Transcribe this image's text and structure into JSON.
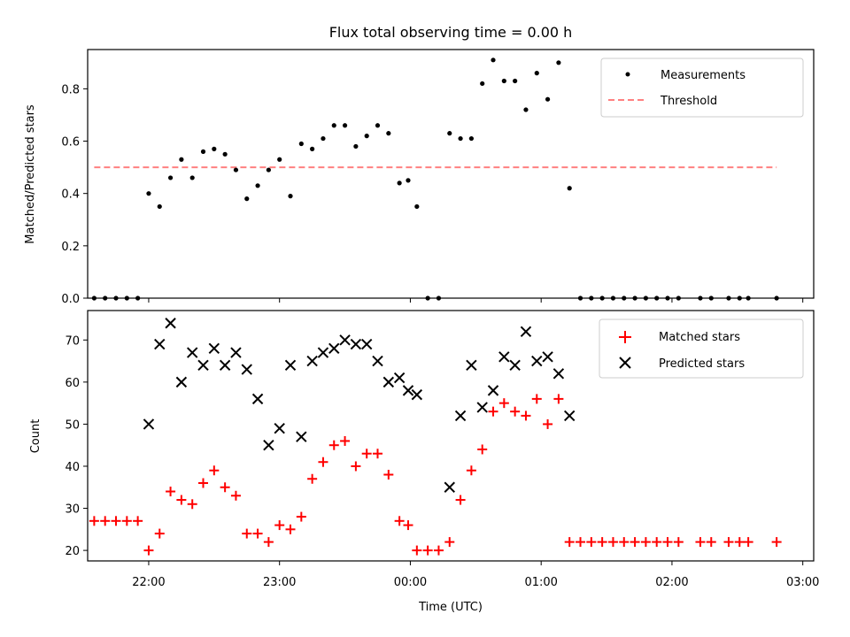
{
  "chart_data": [
    {
      "type": "scatter",
      "title": "Flux total observing time = 0.00 h",
      "xlabel": "",
      "ylabel": "Matched/Predicted stars",
      "xlim": [
        "21:32",
        "03:05"
      ],
      "ylim": [
        0.0,
        0.95
      ],
      "yticks": [
        "0.0",
        "0.2",
        "0.4",
        "0.6",
        "0.8"
      ],
      "yticks_values": [
        0.0,
        0.2,
        0.4,
        0.6,
        0.8
      ],
      "grid": false,
      "legend_position": "top-right",
      "series": [
        {
          "name": "Measurements",
          "marker": "dot",
          "color": "#000000",
          "x": [
            "21:35",
            "21:40",
            "21:45",
            "21:50",
            "21:55",
            "22:00",
            "22:05",
            "22:10",
            "22:15",
            "22:20",
            "22:25",
            "22:30",
            "22:35",
            "22:40",
            "22:45",
            "22:50",
            "22:55",
            "23:00",
            "23:05",
            "23:10",
            "23:15",
            "23:20",
            "23:25",
            "23:30",
            "23:35",
            "23:40",
            "23:45",
            "23:50",
            "23:55",
            "23:59",
            "00:03",
            "00:08",
            "00:13",
            "00:18",
            "00:23",
            "00:28",
            "00:33",
            "00:38",
            "00:43",
            "00:48",
            "00:53",
            "00:58",
            "01:03",
            "01:08",
            "01:13",
            "01:18",
            "01:23",
            "01:28",
            "01:33",
            "01:38",
            "01:43",
            "01:48",
            "01:53",
            "01:58",
            "02:03",
            "02:13",
            "02:18",
            "02:26",
            "02:31",
            "02:35",
            "02:48"
          ],
          "y": [
            0.0,
            0.0,
            0.0,
            0.0,
            0.0,
            0.4,
            0.35,
            0.46,
            0.53,
            0.46,
            0.56,
            0.57,
            0.55,
            0.49,
            0.38,
            0.43,
            0.49,
            0.53,
            0.39,
            0.59,
            0.57,
            0.61,
            0.66,
            0.66,
            0.58,
            0.62,
            0.66,
            0.63,
            0.44,
            0.45,
            0.35,
            0.0,
            0.0,
            0.63,
            0.61,
            0.61,
            0.82,
            0.91,
            0.83,
            0.83,
            0.72,
            0.86,
            0.76,
            0.9,
            0.42,
            0.0,
            0.0,
            0.0,
            0.0,
            0.0,
            0.0,
            0.0,
            0.0,
            0.0,
            0.0,
            0.0,
            0.0,
            0.0,
            0.0,
            0.0,
            0.0
          ]
        },
        {
          "name": "Threshold",
          "style": "dashed",
          "color": "#ff8080",
          "x": [
            "21:35",
            "02:48"
          ],
          "y": [
            0.5,
            0.5
          ]
        }
      ]
    },
    {
      "type": "scatter",
      "title": "",
      "xlabel": "Time (UTC)",
      "ylabel": "Count",
      "xlim": [
        "21:32",
        "03:05"
      ],
      "ylim": [
        17.5,
        77
      ],
      "xticks": [
        "22:00",
        "23:00",
        "00:00",
        "01:00",
        "02:00",
        "03:00"
      ],
      "yticks": [
        "20",
        "30",
        "40",
        "50",
        "60",
        "70"
      ],
      "yticks_values": [
        20,
        30,
        40,
        50,
        60,
        70
      ],
      "grid": false,
      "legend_position": "top-right",
      "series": [
        {
          "name": "Matched stars",
          "marker": "plus",
          "color": "#ff0000",
          "x": [
            "21:35",
            "21:40",
            "21:45",
            "21:50",
            "21:55",
            "22:00",
            "22:05",
            "22:10",
            "22:15",
            "22:20",
            "22:25",
            "22:30",
            "22:35",
            "22:40",
            "22:45",
            "22:50",
            "22:55",
            "23:00",
            "23:05",
            "23:10",
            "23:15",
            "23:20",
            "23:25",
            "23:30",
            "23:35",
            "23:40",
            "23:45",
            "23:50",
            "23:55",
            "23:59",
            "00:03",
            "00:08",
            "00:13",
            "00:18",
            "00:23",
            "00:28",
            "00:33",
            "00:38",
            "00:43",
            "00:48",
            "00:53",
            "00:58",
            "01:03",
            "01:08",
            "01:13",
            "01:18",
            "01:23",
            "01:28",
            "01:33",
            "01:38",
            "01:43",
            "01:48",
            "01:53",
            "01:58",
            "02:03",
            "02:13",
            "02:18",
            "02:26",
            "02:31",
            "02:35",
            "02:48"
          ],
          "y": [
            27,
            27,
            27,
            27,
            27,
            20,
            24,
            34,
            32,
            31,
            36,
            39,
            35,
            33,
            24,
            24,
            22,
            26,
            25,
            28,
            37,
            41,
            45,
            46,
            40,
            43,
            43,
            38,
            27,
            26,
            20,
            20,
            20,
            22,
            32,
            39,
            44,
            53,
            55,
            53,
            52,
            56,
            50,
            56,
            22,
            22,
            22,
            22,
            22,
            22,
            22,
            22,
            22,
            22,
            22,
            22,
            22,
            22,
            22,
            22,
            22
          ]
        },
        {
          "name": "Predicted stars",
          "marker": "x",
          "color": "#000000",
          "x": [
            "22:00",
            "22:05",
            "22:10",
            "22:15",
            "22:20",
            "22:25",
            "22:30",
            "22:35",
            "22:40",
            "22:45",
            "22:50",
            "22:55",
            "23:00",
            "23:05",
            "23:10",
            "23:15",
            "23:20",
            "23:25",
            "23:30",
            "23:35",
            "23:40",
            "23:45",
            "23:50",
            "23:55",
            "23:59",
            "00:03",
            "00:18",
            "00:23",
            "00:28",
            "00:33",
            "00:38",
            "00:43",
            "00:48",
            "00:53",
            "00:58",
            "01:03",
            "01:08",
            "01:13"
          ],
          "y": [
            50,
            69,
            74,
            60,
            67,
            64,
            68,
            64,
            67,
            63,
            56,
            45,
            49,
            64,
            47,
            65,
            67,
            68,
            70,
            69,
            69,
            65,
            60,
            61,
            58,
            57,
            35,
            52,
            64,
            54,
            58,
            66,
            64,
            72,
            65,
            66,
            62,
            52
          ]
        }
      ]
    }
  ]
}
